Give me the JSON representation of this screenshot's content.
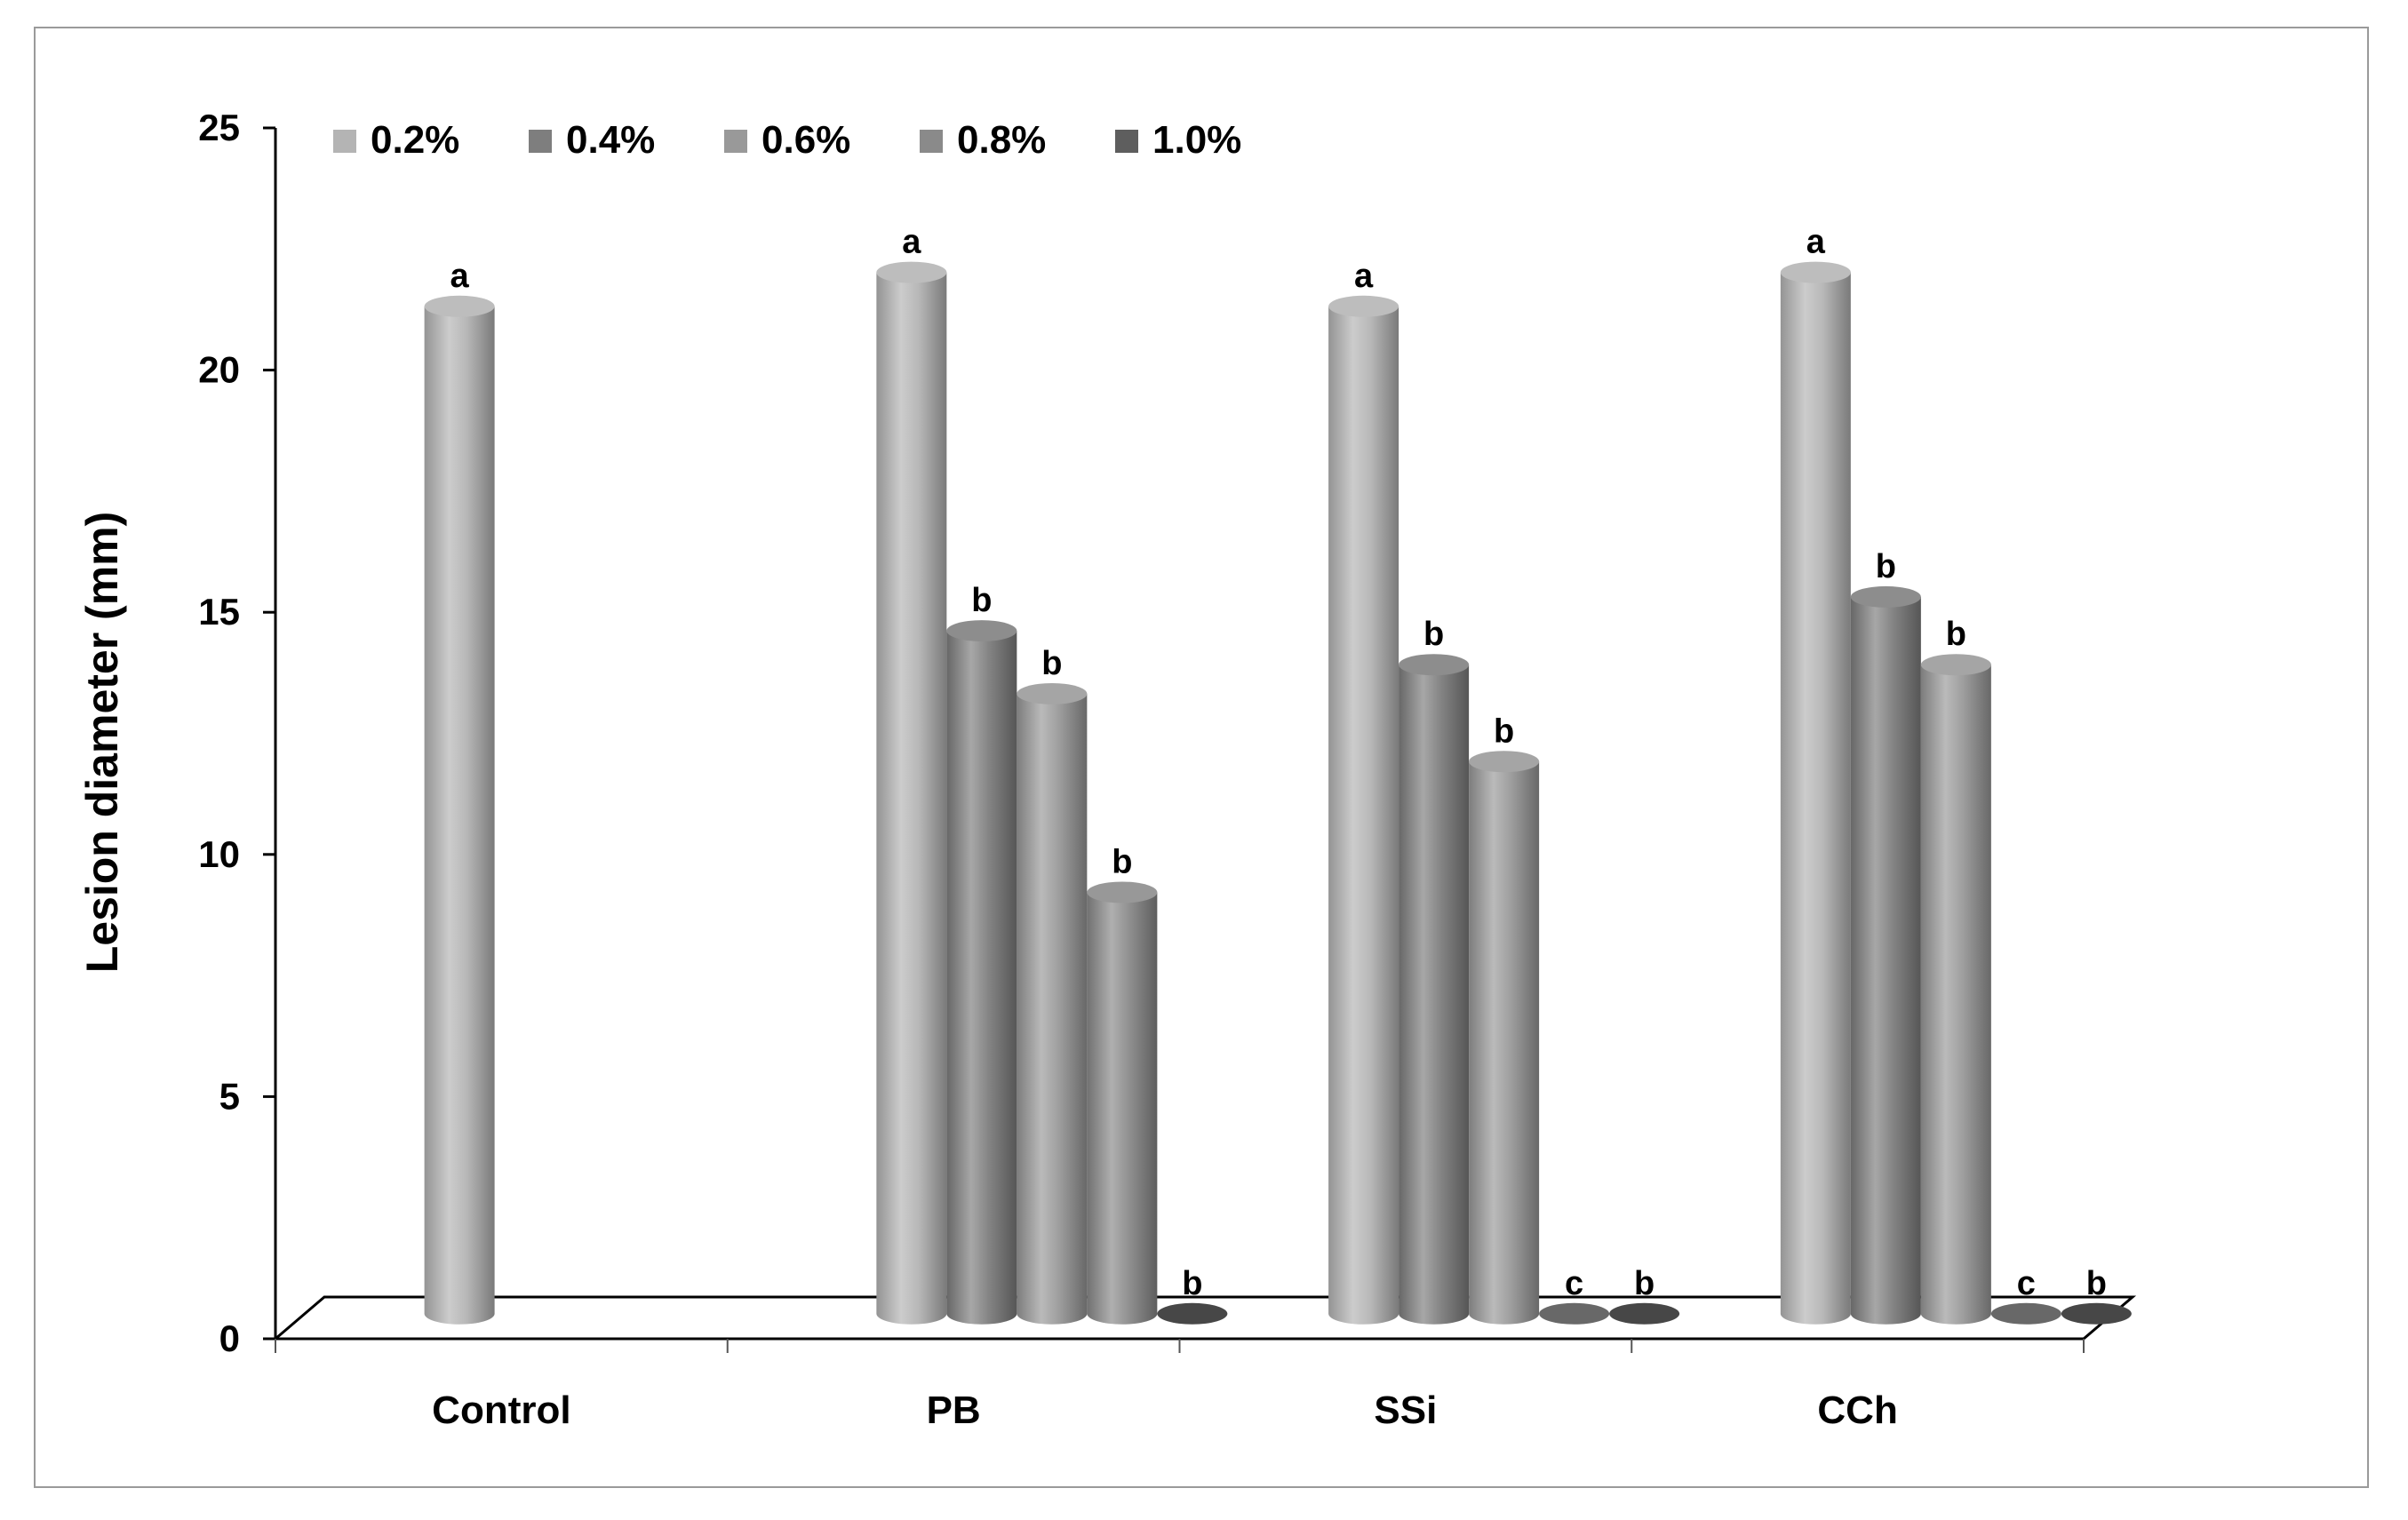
{
  "chart_data": {
    "type": "bar",
    "style": "3d-cylinder",
    "title": "",
    "xlabel": "",
    "ylabel": "Lesion diameter (mm)",
    "ylim": [
      0,
      25
    ],
    "yticks": [
      "0",
      "5",
      "10",
      "15",
      "20",
      "25"
    ],
    "grid": false,
    "legend_position": "top-left",
    "categories": [
      "Control",
      "PB",
      "SSi",
      "CCh"
    ],
    "series": [
      {
        "name": "0.2%",
        "color": "#b4b4b4",
        "values": [
          20.8,
          21.5,
          20.8,
          21.5
        ],
        "significance": [
          "a",
          "a",
          "a",
          "a"
        ]
      },
      {
        "name": "0.4%",
        "color": "#7e7e7e",
        "values": [
          null,
          14.1,
          13.4,
          14.8
        ],
        "significance": [
          "",
          "b",
          "b",
          "b"
        ]
      },
      {
        "name": "0.6%",
        "color": "#999999",
        "values": [
          null,
          12.8,
          11.4,
          13.4
        ],
        "significance": [
          "",
          "b",
          "b",
          "b"
        ]
      },
      {
        "name": "0.8%",
        "color": "#8a8a8a",
        "values": [
          null,
          8.7,
          0,
          0
        ],
        "significance": [
          "",
          "b",
          "c",
          "c"
        ]
      },
      {
        "name": "1.0%",
        "color": "#5e5e5e",
        "values": [
          null,
          0,
          0,
          0
        ],
        "significance": [
          "",
          "b",
          "b",
          "b"
        ]
      }
    ]
  }
}
